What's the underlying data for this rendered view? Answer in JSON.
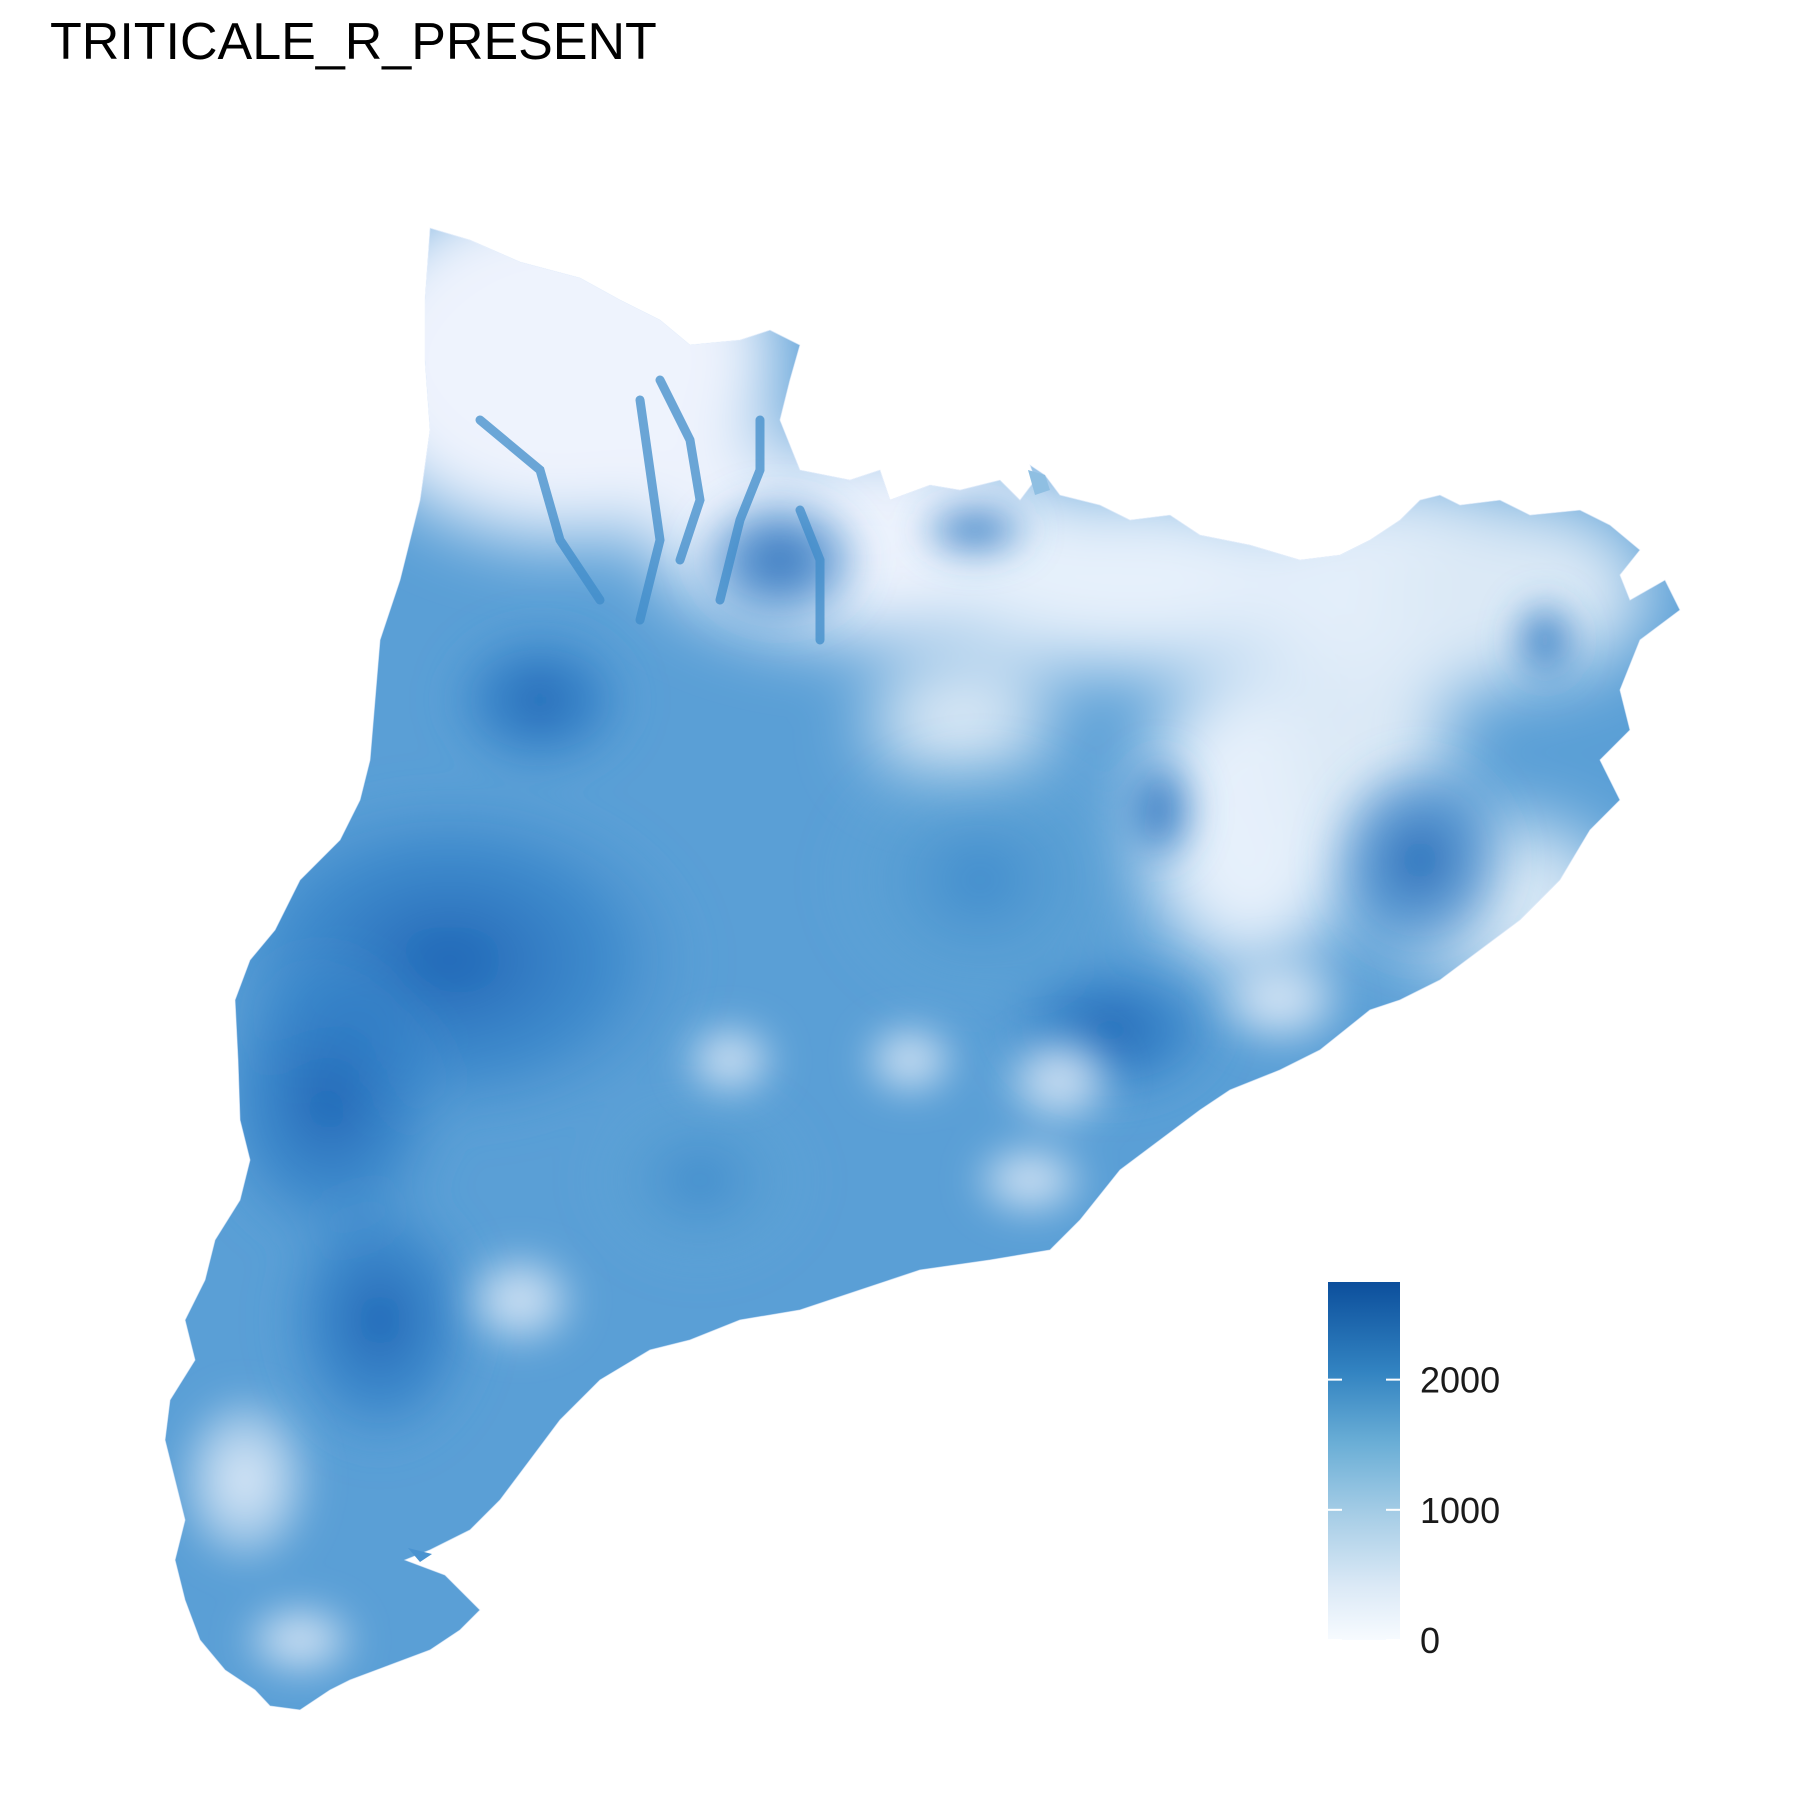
{
  "title": "TRITICALE_R_PRESENT",
  "legend": {
    "min": 0,
    "max": 2750,
    "ticks": [
      {
        "value": 0,
        "label": "0"
      },
      {
        "value": 1000,
        "label": "1000"
      },
      {
        "value": 2000,
        "label": "2000"
      }
    ],
    "colors": {
      "low": "#eef3fd",
      "mid": "#6aaed6",
      "high": "#08519c"
    }
  },
  "map": {
    "region_fill_low": "#eef3fd",
    "region_fill_mid": "#5ba3d9",
    "region_fill_high": "#1f6fbf"
  }
}
